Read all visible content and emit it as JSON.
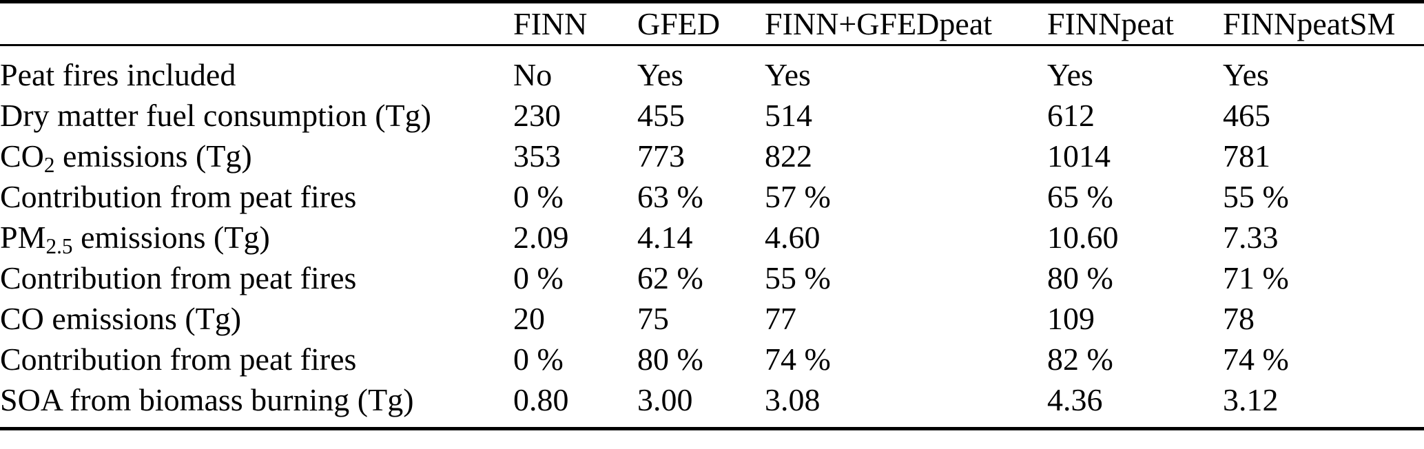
{
  "colors": {
    "text": "#000000",
    "background": "#ffffff",
    "rule": "#000000"
  },
  "table": {
    "columns": [
      "",
      "FINN",
      "GFED",
      "FINN+GFEDpeat",
      "FINNpeat",
      "FINNpeatSM"
    ],
    "rows": [
      {
        "label_pre": "Peat fires included",
        "label_sub": "",
        "label_post": "",
        "values": [
          "No",
          "Yes",
          "Yes",
          "Yes",
          "Yes"
        ]
      },
      {
        "label_pre": "Dry matter fuel consumption (Tg)",
        "label_sub": "",
        "label_post": "",
        "values": [
          "230",
          "455",
          "514",
          "612",
          "465"
        ]
      },
      {
        "label_pre": "CO",
        "label_sub": "2",
        "label_post": " emissions (Tg)",
        "values": [
          "353",
          "773",
          "822",
          "1014",
          "781"
        ]
      },
      {
        "label_pre": "Contribution from peat fires",
        "label_sub": "",
        "label_post": "",
        "values": [
          "0 %",
          "63 %",
          "57 %",
          "65 %",
          "55 %"
        ]
      },
      {
        "label_pre": "PM",
        "label_sub": "2.5",
        "label_post": " emissions (Tg)",
        "values": [
          "2.09",
          "4.14",
          "4.60",
          "10.60",
          "7.33"
        ]
      },
      {
        "label_pre": "Contribution from peat fires",
        "label_sub": "",
        "label_post": "",
        "values": [
          "0 %",
          "62 %",
          "55 %",
          "80 %",
          "71 %"
        ]
      },
      {
        "label_pre": "CO emissions (Tg)",
        "label_sub": "",
        "label_post": "",
        "values": [
          "20",
          "75",
          "77",
          "109",
          "78"
        ]
      },
      {
        "label_pre": "Contribution from peat fires",
        "label_sub": "",
        "label_post": "",
        "values": [
          "0 %",
          "80 %",
          "74 %",
          "82 %",
          "74 %"
        ]
      },
      {
        "label_pre": "SOA from biomass burning (Tg)",
        "label_sub": "",
        "label_post": "",
        "values": [
          "0.80",
          "3.00",
          "3.08",
          "4.36",
          "3.12"
        ]
      }
    ]
  }
}
